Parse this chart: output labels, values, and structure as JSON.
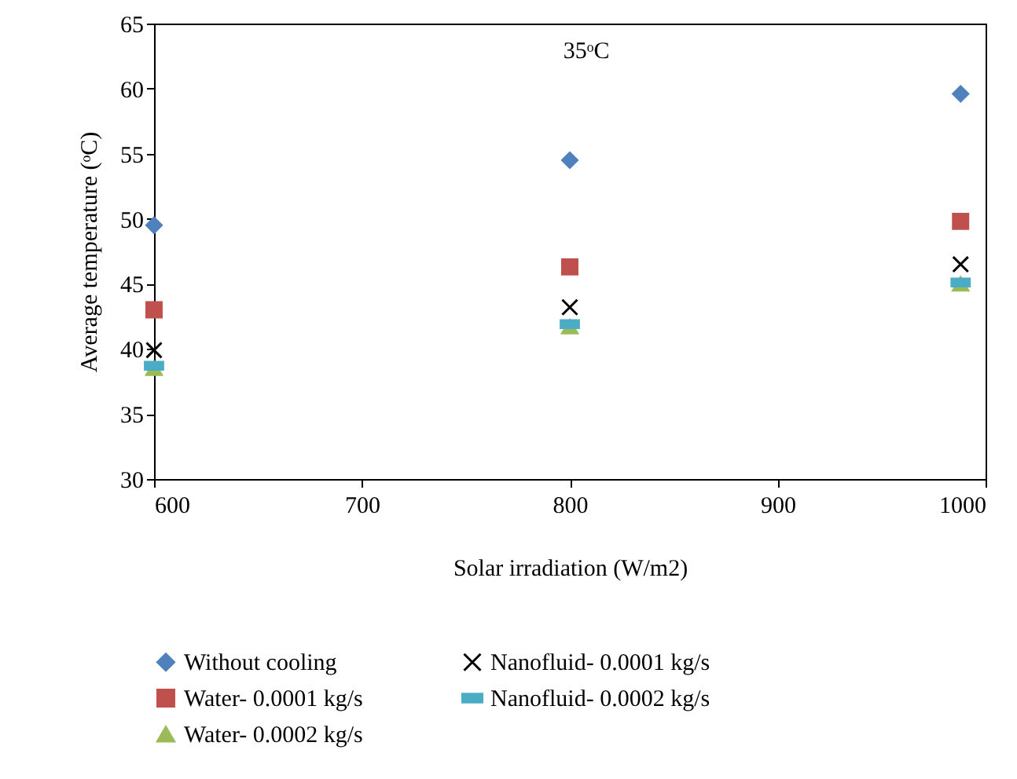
{
  "chart_data": {
    "type": "scatter",
    "xlabel": "Solar irradiation (W/m2)",
    "ylabel": "Average temperature (ᵒC)",
    "x": [
      600,
      800,
      988
    ],
    "series": [
      {
        "name": "Without cooling",
        "color": "#4f81bd",
        "marker": "diamond",
        "values": [
          49.5,
          54.5,
          59.6
        ]
      },
      {
        "name": "Water- 0.0001 kg/s",
        "color": "#c0504d",
        "marker": "square",
        "values": [
          43.0,
          46.3,
          49.8
        ]
      },
      {
        "name": "Water- 0.0002 kg/s",
        "color": "#9bbb59",
        "marker": "triangle",
        "values": [
          38.5,
          41.7,
          45.0
        ]
      },
      {
        "name": "Nanofluid- 0.0001 kg/s",
        "color": "#000000",
        "marker": "cross",
        "values": [
          39.9,
          43.2,
          46.5
        ]
      },
      {
        "name": "Nanofluid- 0.0002 kg/s",
        "color": "#4bacc6",
        "values": [
          38.7,
          41.9,
          45.1
        ]
      }
    ],
    "xlim": [
      600,
      1000
    ],
    "xticks": [
      600,
      700,
      800,
      900,
      1000
    ],
    "ylim": [
      30,
      65
    ],
    "yticks": [
      30,
      35,
      40,
      45,
      50,
      55,
      60,
      65
    ],
    "annotations": [
      "35ᵒC"
    ],
    "grid": false,
    "legend": "bottom"
  }
}
